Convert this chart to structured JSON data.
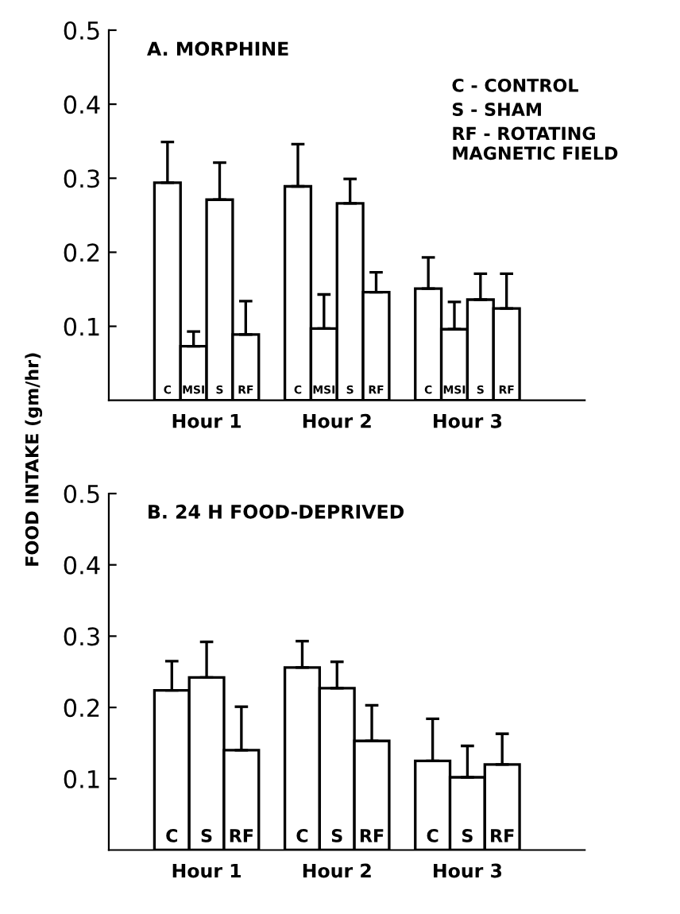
{
  "chart_data": [
    {
      "type": "bar",
      "title": "A. MORPHINE",
      "ylabel": "FOOD INTAKE (gm/hr)",
      "categories": [
        "Hour 1",
        "Hour 2",
        "Hour 3"
      ],
      "series": [
        {
          "name": "C",
          "color": "#ffffff",
          "values": [
            0.294,
            0.289,
            0.151
          ],
          "errors": [
            [
              0.294,
              0.349
            ],
            [
              0.289,
              0.346
            ],
            [
              0.151,
              0.193
            ]
          ]
        },
        {
          "name": "MSI",
          "color": "#ffffff",
          "values": [
            0.073,
            0.097,
            0.096
          ],
          "errors": [
            [
              0.073,
              0.093
            ],
            [
              0.097,
              0.143
            ],
            [
              0.096,
              0.133
            ]
          ]
        },
        {
          "name": "S",
          "color": "#ffffff",
          "values": [
            0.271,
            0.266,
            0.136
          ],
          "errors": [
            [
              0.271,
              0.321
            ],
            [
              0.266,
              0.299
            ],
            [
              0.136,
              0.171
            ]
          ]
        },
        {
          "name": "RF",
          "color": "#ffffff",
          "values": [
            0.089,
            0.146,
            0.124
          ],
          "errors": [
            [
              0.089,
              0.134
            ],
            [
              0.146,
              0.173
            ],
            [
              0.124,
              0.171
            ]
          ]
        }
      ],
      "ylim": [
        0,
        0.5
      ],
      "yticks": [
        0.1,
        0.2,
        0.3,
        0.4,
        0.5
      ],
      "grid": false,
      "legend": false,
      "annotations": [
        "C - CONTROL",
        "S - SHAM",
        "RF - ROTATING\nMAGNETIC FIELD"
      ]
    },
    {
      "type": "bar",
      "title": "B. 24 H FOOD-DEPRIVED",
      "categories": [
        "Hour 1",
        "Hour 2",
        "Hour 3"
      ],
      "series": [
        {
          "name": "C",
          "color": "#ffffff",
          "values": [
            0.224,
            0.256,
            0.125
          ],
          "errors": [
            [
              0.224,
              0.265
            ],
            [
              0.256,
              0.293
            ],
            [
              0.125,
              0.184
            ]
          ]
        },
        {
          "name": "S",
          "color": "#ffffff",
          "values": [
            0.242,
            0.227,
            0.102
          ],
          "errors": [
            [
              0.242,
              0.292
            ],
            [
              0.227,
              0.264
            ],
            [
              0.102,
              0.146
            ]
          ]
        },
        {
          "name": "RF",
          "color": "#ffffff",
          "values": [
            0.14,
            0.153,
            0.12
          ],
          "errors": [
            [
              0.14,
              0.201
            ],
            [
              0.153,
              0.203
            ],
            [
              0.12,
              0.163
            ]
          ]
        }
      ],
      "ylim": [
        0,
        0.5
      ],
      "yticks": [
        0.1,
        0.2,
        0.3,
        0.4,
        0.5
      ],
      "grid": false,
      "legend": false
    }
  ]
}
